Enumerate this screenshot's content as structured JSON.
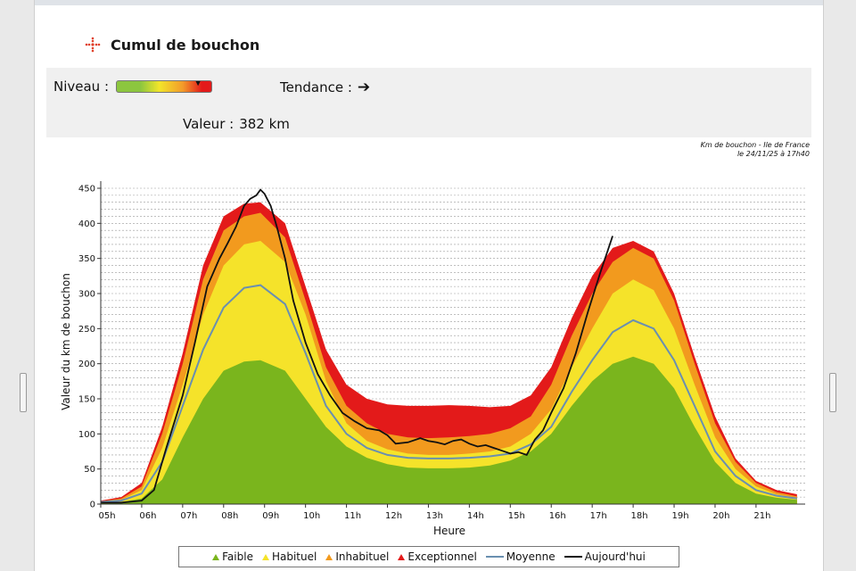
{
  "header": {
    "title": "Cumul de bouchon",
    "icon": "traffic-jam-icon"
  },
  "info": {
    "niveau_label": "Niveau :",
    "tendance_label": "Tendance :",
    "tendance_icon": "arrow-right-icon",
    "valeur_label": "Valeur :",
    "valeur_value": "382 km",
    "level_fraction": 0.87
  },
  "caption": {
    "line1": "Km de bouchon - Ile de France",
    "line2": "le 24/11/25 à 17h40"
  },
  "chart_data": {
    "type": "area",
    "ylabel": "Valeur du  km de bouchon",
    "xlabel": "Heure",
    "ylim": [
      0,
      450
    ],
    "xlim": [
      5,
      22.2
    ],
    "yticks": [
      0,
      50,
      100,
      150,
      200,
      250,
      300,
      350,
      400,
      450
    ],
    "xticks": [
      {
        "v": 5,
        "label": "05h"
      },
      {
        "v": 6,
        "label": "06h"
      },
      {
        "v": 7,
        "label": "07h"
      },
      {
        "v": 8,
        "label": "08h"
      },
      {
        "v": 9,
        "label": "09h"
      },
      {
        "v": 10,
        "label": "10h"
      },
      {
        "v": 11,
        "label": "11h"
      },
      {
        "v": 12,
        "label": "12h"
      },
      {
        "v": 13,
        "label": "13h"
      },
      {
        "v": 14,
        "label": "14h"
      },
      {
        "v": 15,
        "label": "15h"
      },
      {
        "v": 16,
        "label": "16h"
      },
      {
        "v": 17,
        "label": "17h"
      },
      {
        "v": 18,
        "label": "18h"
      },
      {
        "v": 19,
        "label": "19h"
      },
      {
        "v": 20,
        "label": "20h"
      },
      {
        "v": 21,
        "label": "21h"
      }
    ],
    "grid": true,
    "legend_position": "bottom",
    "x": [
      5,
      5.5,
      6,
      6.5,
      7,
      7.5,
      8,
      8.5,
      8.9,
      9.5,
      10,
      10.5,
      11,
      11.5,
      12,
      12.5,
      13,
      13.5,
      14,
      14.5,
      15,
      15.5,
      16,
      16.5,
      17,
      17.5,
      18,
      18.5,
      19,
      19.5,
      20,
      20.5,
      21,
      21.5,
      22
    ],
    "series": [
      {
        "name": "Faible",
        "color": "#7ab51d",
        "values": [
          2,
          3,
          8,
          35,
          95,
          150,
          190,
          203,
          205,
          190,
          150,
          110,
          82,
          66,
          57,
          52,
          51,
          51,
          52,
          55,
          62,
          75,
          100,
          140,
          175,
          200,
          210,
          200,
          165,
          110,
          60,
          30,
          15,
          9,
          6
        ]
      },
      {
        "name": "Habituel",
        "color": "#f5e32a",
        "values": [
          3,
          6,
          20,
          80,
          170,
          270,
          340,
          370,
          375,
          345,
          270,
          175,
          115,
          90,
          78,
          72,
          70,
          70,
          72,
          75,
          82,
          100,
          135,
          195,
          250,
          300,
          320,
          305,
          250,
          170,
          95,
          50,
          25,
          14,
          9
        ]
      },
      {
        "name": "Inhabituel",
        "color": "#f29a1e",
        "values": [
          4,
          8,
          25,
          100,
          200,
          320,
          390,
          410,
          415,
          380,
          290,
          195,
          140,
          115,
          100,
          95,
          94,
          95,
          97,
          100,
          108,
          125,
          170,
          240,
          300,
          345,
          365,
          350,
          290,
          200,
          115,
          60,
          30,
          17,
          11
        ]
      },
      {
        "name": "Exceptionnel",
        "color": "#e31a1a",
        "values": [
          5,
          10,
          30,
          110,
          215,
          340,
          410,
          428,
          430,
          400,
          310,
          220,
          170,
          150,
          142,
          140,
          140,
          141,
          140,
          138,
          140,
          155,
          195,
          265,
          325,
          365,
          375,
          360,
          300,
          210,
          125,
          65,
          33,
          20,
          14
        ]
      }
    ],
    "moyenne": {
      "name": "Moyenne",
      "color": "#6a8fb0",
      "values": [
        3,
        5,
        15,
        60,
        140,
        220,
        280,
        308,
        312,
        285,
        215,
        140,
        100,
        80,
        70,
        66,
        65,
        65,
        66,
        68,
        72,
        85,
        110,
        160,
        205,
        245,
        262,
        250,
        205,
        140,
        75,
        40,
        20,
        12,
        8
      ]
    },
    "aujourdhui": {
      "name": "Aujourd'hui",
      "color": "#111111",
      "x": [
        5,
        5.5,
        6,
        6.3,
        6.6,
        7,
        7.3,
        7.6,
        7.9,
        8.1,
        8.3,
        8.5,
        8.65,
        8.8,
        8.9,
        9.0,
        9.15,
        9.3,
        9.5,
        9.7,
        10,
        10.3,
        10.6,
        10.9,
        11.2,
        11.5,
        11.8,
        12,
        12.2,
        12.5,
        12.8,
        13,
        13.2,
        13.4,
        13.6,
        13.8,
        14,
        14.2,
        14.4,
        14.6,
        14.8,
        15,
        15.2,
        15.4,
        15.6,
        15.8,
        16,
        16.3,
        16.6,
        16.9,
        17.2,
        17.5
      ],
      "values": [
        2,
        2,
        5,
        20,
        80,
        155,
        230,
        310,
        350,
        372,
        395,
        425,
        435,
        440,
        448,
        442,
        425,
        395,
        350,
        290,
        230,
        185,
        155,
        130,
        118,
        108,
        105,
        98,
        86,
        88,
        94,
        90,
        88,
        85,
        90,
        92,
        86,
        82,
        84,
        80,
        76,
        72,
        74,
        70,
        92,
        105,
        130,
        165,
        215,
        275,
        330,
        382
      ]
    }
  },
  "legend": [
    {
      "label": "Faible",
      "kind": "triangle",
      "color": "#7ab51d"
    },
    {
      "label": "Habituel",
      "kind": "triangle",
      "color": "#f5e32a"
    },
    {
      "label": "Inhabituel",
      "kind": "triangle",
      "color": "#f29a1e"
    },
    {
      "label": "Exceptionnel",
      "kind": "triangle",
      "color": "#e31a1a"
    },
    {
      "label": "Moyenne",
      "kind": "line",
      "color": "#6a8fb0"
    },
    {
      "label": "Aujourd'hui",
      "kind": "line",
      "color": "#111111"
    }
  ]
}
